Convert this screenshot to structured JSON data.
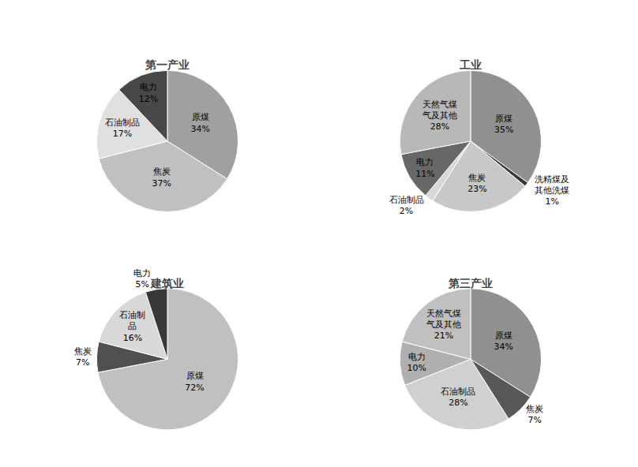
{
  "chart_data": [
    {
      "type": "pie",
      "title": "第一产业",
      "categories": [
        "原煤",
        "焦炭",
        "石油制品",
        "电力"
      ],
      "values": [
        34,
        37,
        17,
        12
      ],
      "value_labels": [
        "34%",
        "37%",
        "17%",
        "12%"
      ],
      "colors": [
        "#a0a0a0",
        "#c0c0c0",
        "#e0e0e0",
        "#484848"
      ]
    },
    {
      "type": "pie",
      "title": "工业",
      "categories": [
        "原煤",
        "洗精煤及\n其他洗煤",
        "焦炭",
        "石油制品",
        "电力",
        "天然气煤\n气及其他"
      ],
      "values": [
        35,
        1,
        23,
        2,
        11,
        28
      ],
      "value_labels": [
        "35%",
        "1%",
        "23%",
        "2%",
        "11%",
        "28%"
      ],
      "colors": [
        "#909090",
        "#383838",
        "#c8c8c8",
        "#d8d8d8",
        "#686868",
        "#b8b8b8"
      ]
    },
    {
      "type": "pie",
      "title": "建筑业",
      "categories": [
        "原煤",
        "焦炭",
        "石油制\n品",
        "电力"
      ],
      "values": [
        72,
        7,
        16,
        5
      ],
      "value_labels": [
        "72%",
        "7%",
        "16%",
        "5%"
      ],
      "colors": [
        "#c0c0c0",
        "#505050",
        "#d8d8d8",
        "#383838"
      ]
    },
    {
      "type": "pie",
      "title": "第三产业",
      "categories": [
        "原煤",
        "焦炭",
        "石油制品",
        "电力",
        "天然气煤\n气及其他"
      ],
      "values": [
        34,
        7,
        28,
        10,
        21
      ],
      "value_labels": [
        "34%",
        "7%",
        "28%",
        "10%",
        "21%"
      ],
      "colors": [
        "#909090",
        "#585858",
        "#d0d0d0",
        "#b0b0b0",
        "#c0c0c0"
      ]
    }
  ]
}
